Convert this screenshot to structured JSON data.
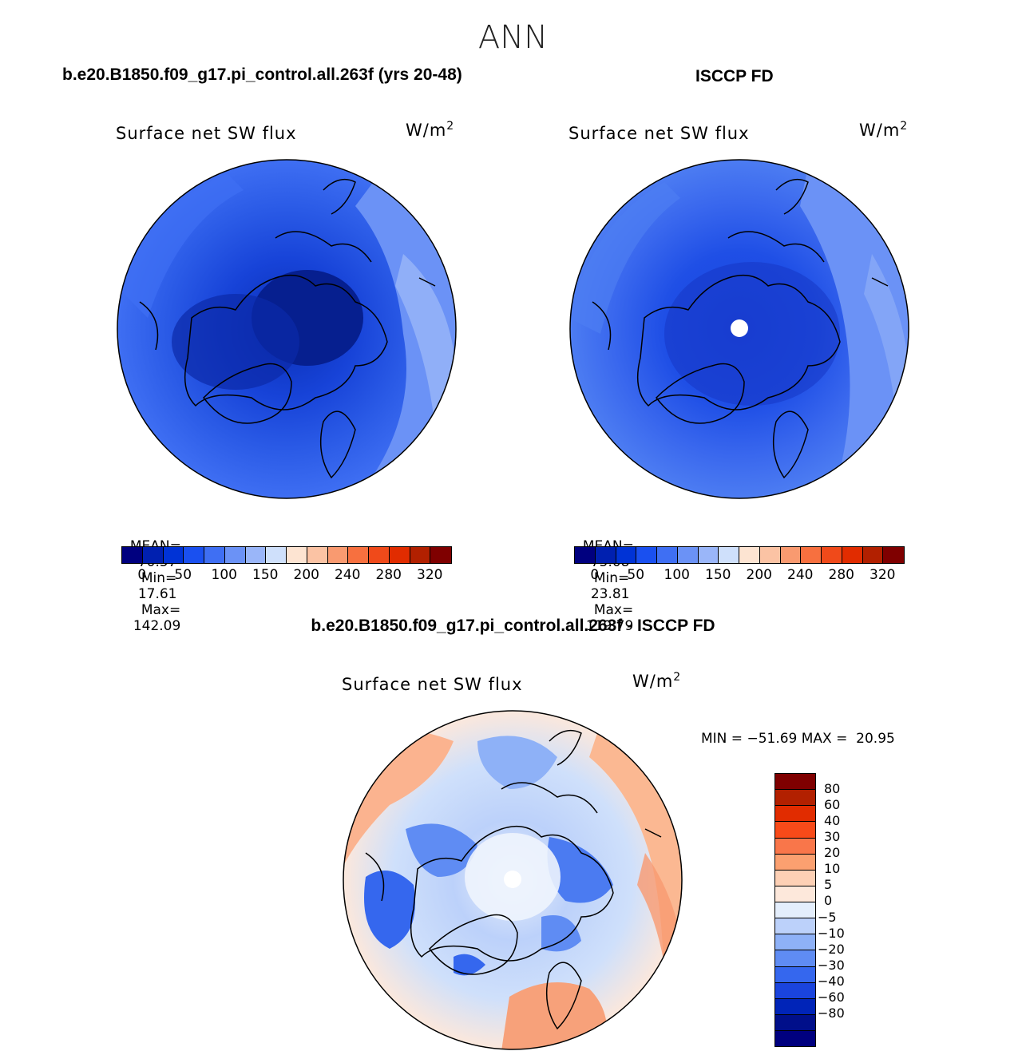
{
  "page_title": "ANN",
  "panels": {
    "model": {
      "header": "b.e20.B1850.f09_g17.pi_control.all.263f (yrs 20-48)",
      "variable": "Surface net SW flux",
      "units": "W/m",
      "units_sup": "2",
      "stats": {
        "mean_label": "MEAN=",
        "mean": "70.57",
        "min_label": "Min=",
        "min": "17.61",
        "max_label": "Max=",
        "max": "142.09"
      }
    },
    "obs": {
      "header": "ISCCP FD",
      "variable": "Surface net SW flux",
      "units": "W/m",
      "units_sup": "2",
      "stats": {
        "mean_label": "MEAN=",
        "mean": "75.08",
        "min_label": "Min=",
        "min": "23.81",
        "max_label": "Max=",
        "max": "119.79"
      }
    },
    "diff": {
      "header": "b.e20.B1850.f09_g17.pi_control.all.263f - ISCCP FD",
      "variable": "Surface net SW flux",
      "units": "W/m",
      "units_sup": "2",
      "stats_text": "MIN = −51.69 MAX =  20.95"
    }
  },
  "colors": {
    "main_scale": [
      "#00007f",
      "#0020b0",
      "#0033d6",
      "#1a50f0",
      "#3f6ff3",
      "#6b92f6",
      "#9ab6f9",
      "#cfe0fb",
      "#fde4d2",
      "#fbc3a4",
      "#f99a70",
      "#f7703f",
      "#f04a1a",
      "#e12c00",
      "#b22000",
      "#7f0000"
    ],
    "diff_scale": [
      "#7f0000",
      "#b22000",
      "#e12c00",
      "#f84a19",
      "#f9764a",
      "#fba070",
      "#fdd0b5",
      "#fde8db",
      "#e4eefc",
      "#bcd1fa",
      "#8eb1f7",
      "#5f8cf3",
      "#3567ee",
      "#1a44dd",
      "#0024b8",
      "#000f8a",
      "#00007f"
    ]
  },
  "chart_data": [
    {
      "type": "heatmap",
      "title": "Surface net SW flux",
      "units": "W/m2",
      "colorbar_ticks": [
        "0",
        "50",
        "100",
        "150",
        "200",
        "240",
        "280",
        "320"
      ],
      "mean": 70.57,
      "min": 17.61,
      "max": 142.09
    },
    {
      "type": "heatmap",
      "title": "Surface net SW flux",
      "units": "W/m2",
      "colorbar_ticks": [
        "0",
        "50",
        "100",
        "150",
        "200",
        "240",
        "280",
        "320"
      ],
      "mean": 75.08,
      "min": 23.81,
      "max": 119.79
    },
    {
      "type": "heatmap",
      "title": "Surface net SW flux",
      "units": "W/m2",
      "colorbar_ticks": [
        "80",
        "60",
        "40",
        "30",
        "20",
        "10",
        "5",
        "0",
        "−5",
        "−10",
        "−20",
        "−30",
        "−40",
        "−60",
        "−80"
      ],
      "min": -51.69,
      "max": 20.95
    }
  ]
}
